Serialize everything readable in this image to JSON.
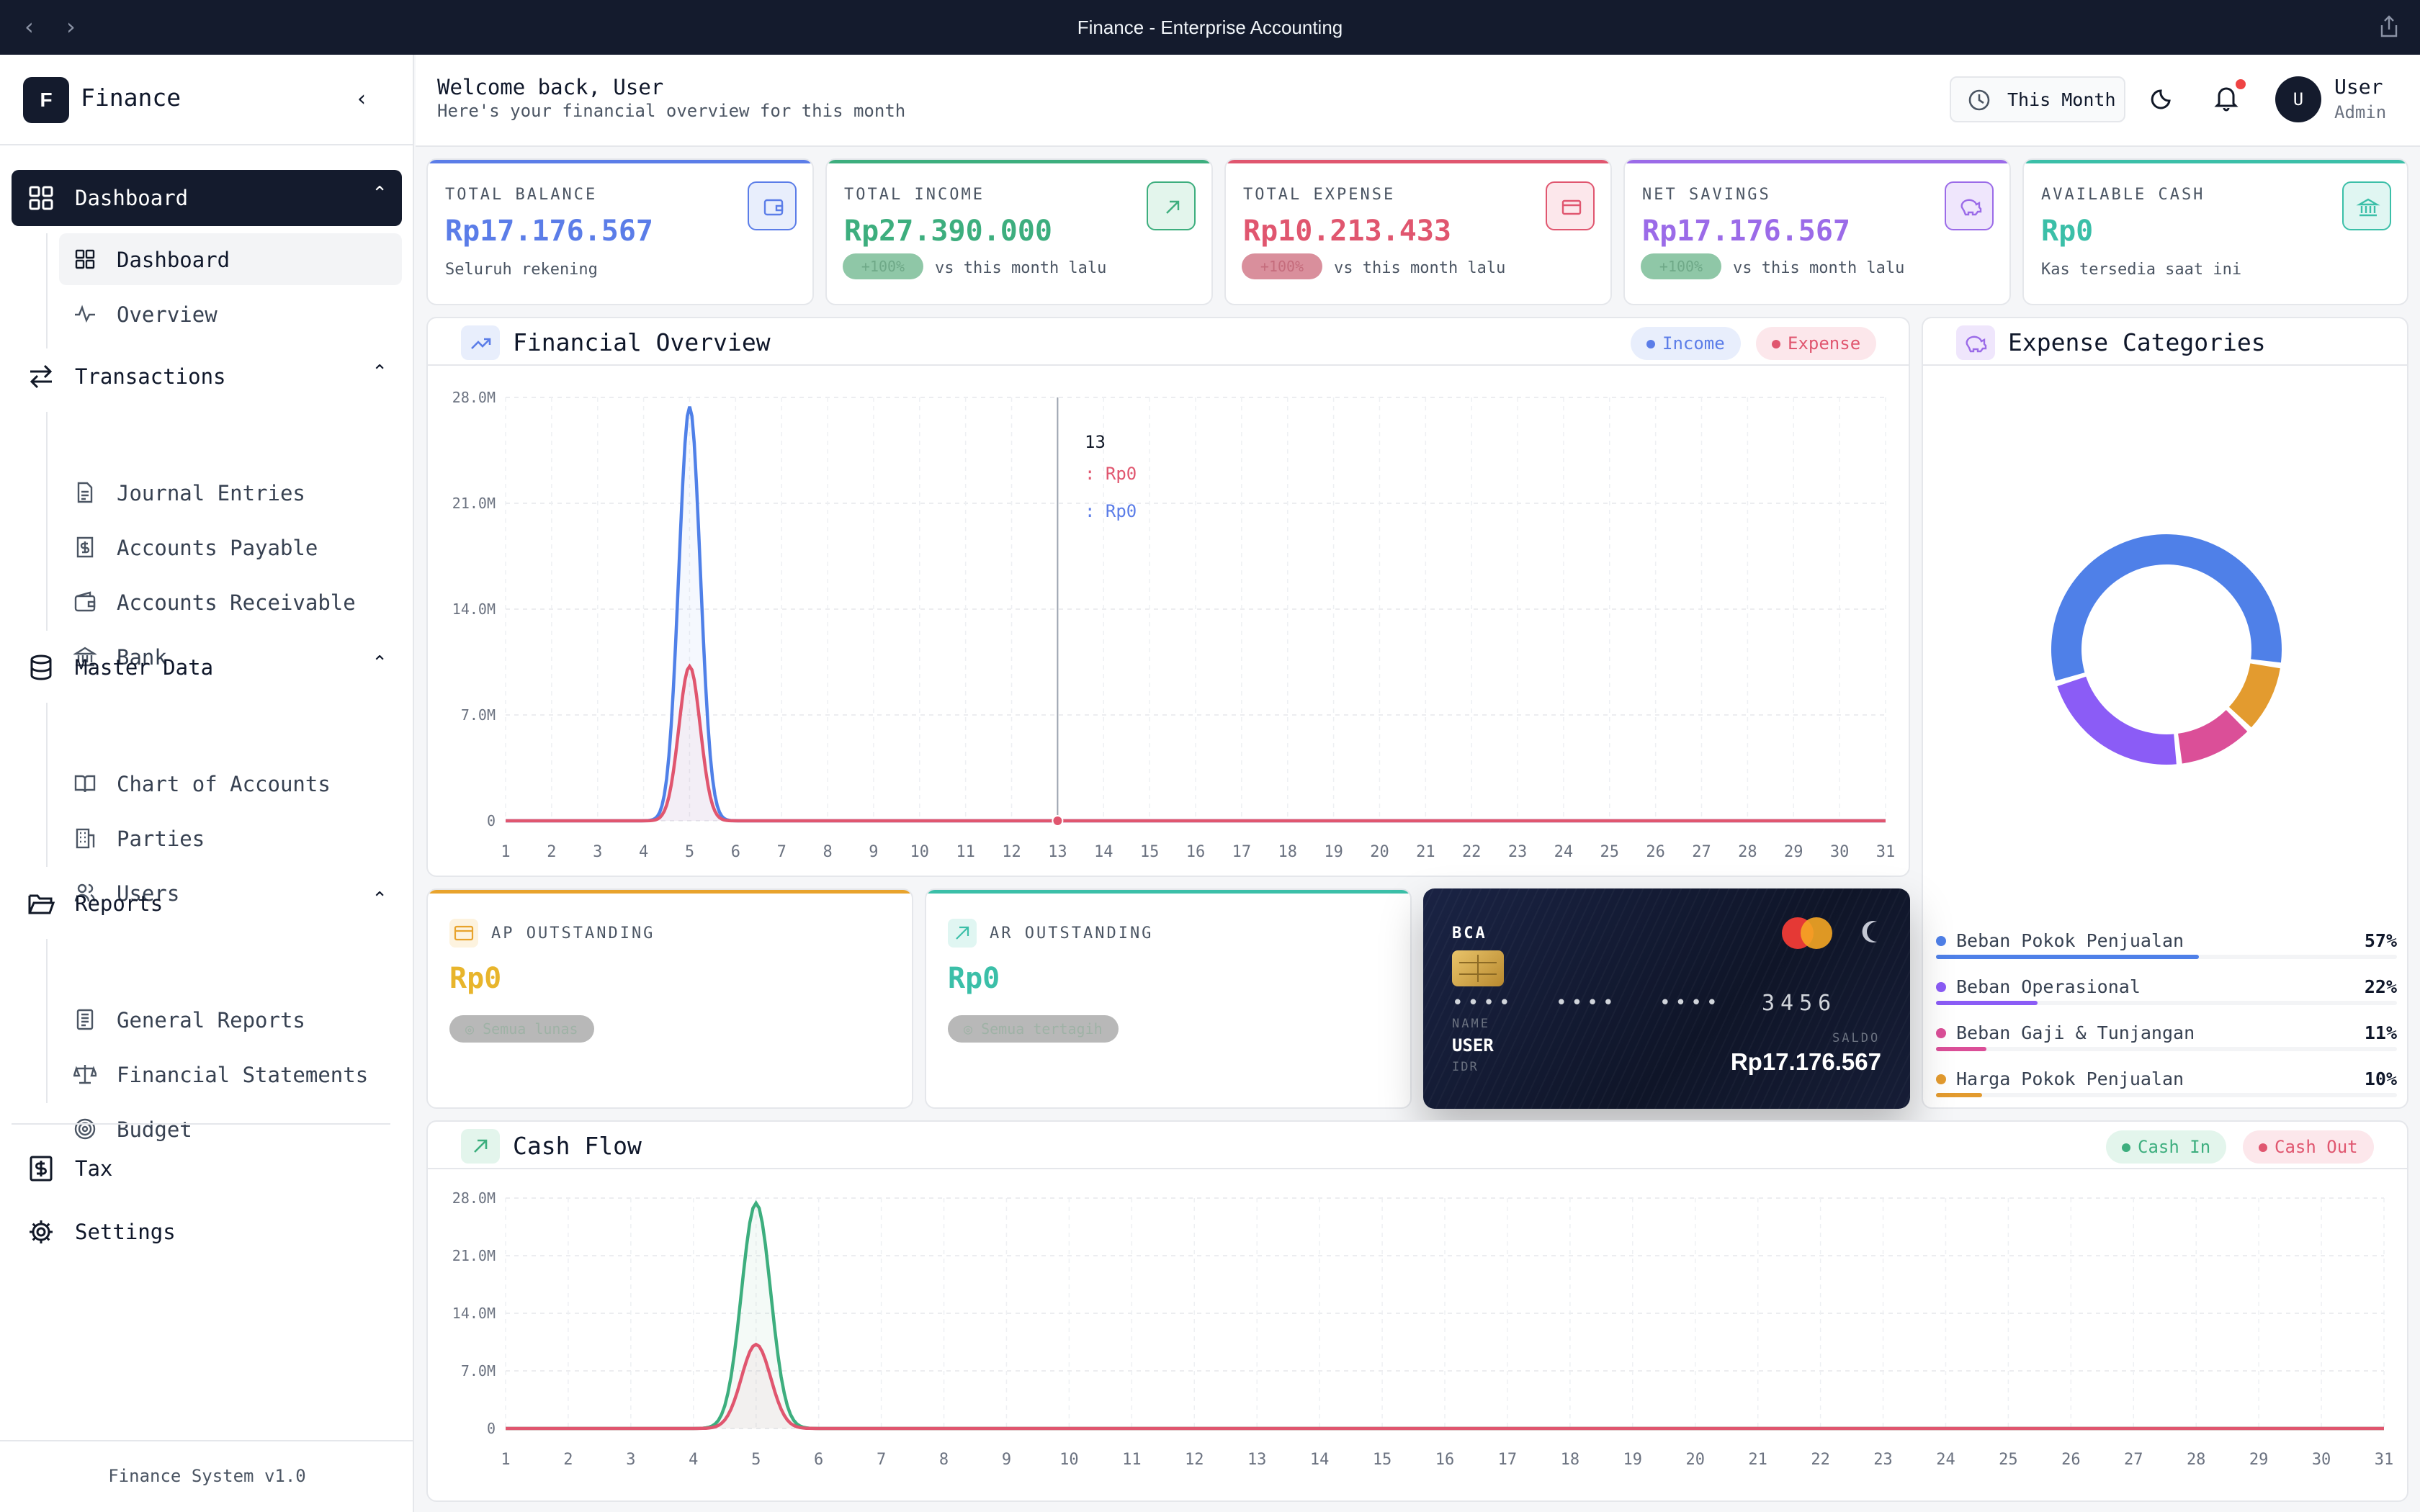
{
  "window": {
    "title": "Finance - Enterprise Accounting"
  },
  "brand": {
    "logo_letter": "F",
    "name": "Finance"
  },
  "sidebar": {
    "groups": [
      {
        "label": "Dashboard",
        "items": [
          "Dashboard",
          "Overview"
        ]
      },
      {
        "label": "Transactions",
        "items": [
          "Journal Entries",
          "Accounts Payable",
          "Accounts Receivable",
          "Bank"
        ]
      },
      {
        "label": "Master Data",
        "items": [
          "Chart of Accounts",
          "Parties",
          "Users"
        ]
      },
      {
        "label": "Reports",
        "items": [
          "General Reports",
          "Financial Statements",
          "Budget"
        ]
      }
    ],
    "tax": "Tax",
    "settings": "Settings",
    "footer": "Finance System v1.0"
  },
  "header": {
    "welcome": "Welcome back, User",
    "subtitle": "Here's your financial overview for this month",
    "period": "This Month",
    "user_initial": "U",
    "user_name": "User",
    "user_role": "Admin"
  },
  "stats": [
    {
      "label": "TOTAL BALANCE",
      "value": "Rp17.176.567",
      "note": "Seluruh rekening",
      "color": "#5b7de8"
    },
    {
      "label": "TOTAL INCOME",
      "value": "Rp27.390.000",
      "badge": "+100%",
      "note": "vs this month lalu",
      "color": "#3dae7e"
    },
    {
      "label": "TOTAL EXPENSE",
      "value": "Rp10.213.433",
      "badge": "+100%",
      "note": "vs this month lalu",
      "color": "#e0566f"
    },
    {
      "label": "NET SAVINGS",
      "value": "Rp17.176.567",
      "badge": "+100%",
      "note": "vs this month lalu",
      "color": "#9b6be8"
    },
    {
      "label": "AVAILABLE CASH",
      "value": "Rp0",
      "note": "Kas tersedia saat ini",
      "color": "#3bbfa8"
    }
  ],
  "overview": {
    "title": "Financial Overview",
    "legend": [
      "Income",
      "Expense"
    ],
    "tooltip": {
      "day": "13",
      "expense": ": Rp0",
      "income": ": Rp0"
    }
  },
  "categories": {
    "title": "Expense Categories",
    "items": [
      {
        "name": "Beban Pokok Penjualan",
        "pct": "57%",
        "value": 57,
        "color": "#4f80e8"
      },
      {
        "name": "Beban Operasional",
        "pct": "22%",
        "value": 22,
        "color": "#8b5cf6"
      },
      {
        "name": "Beban Gaji & Tunjangan",
        "pct": "11%",
        "value": 11,
        "color": "#db4f98"
      },
      {
        "name": "Harga Pokok Penjualan",
        "pct": "10%",
        "value": 10,
        "color": "#e39b2f"
      }
    ]
  },
  "ap": {
    "label": "AP OUTSTANDING",
    "value": "Rp0",
    "badge": "Semua lunas"
  },
  "ar": {
    "label": "AR OUTSTANDING",
    "value": "Rp0",
    "badge": "Semua tertagih"
  },
  "bank_card": {
    "bank": "BCA",
    "masked": [
      "••••",
      "••••",
      "••••",
      "3456"
    ],
    "name_label": "NAME",
    "name": "USER",
    "currency": "IDR",
    "saldo_label": "SALDO",
    "balance": "Rp17.176.567"
  },
  "cashflow": {
    "title": "Cash Flow",
    "legend": [
      "Cash In",
      "Cash Out"
    ]
  },
  "chart_data": [
    {
      "type": "area",
      "title": "Financial Overview",
      "x": [
        1,
        2,
        3,
        4,
        5,
        6,
        7,
        8,
        9,
        10,
        11,
        12,
        13,
        14,
        15,
        16,
        17,
        18,
        19,
        20,
        21,
        22,
        23,
        24,
        25,
        26,
        27,
        28,
        29,
        30,
        31
      ],
      "y_ticks": [
        "0",
        "7.0M",
        "14.0M",
        "21.0M",
        "28.0M"
      ],
      "ylim": [
        0,
        28000000
      ],
      "series": [
        {
          "name": "Income",
          "color": "#4f80e8",
          "values": [
            0,
            0,
            0,
            0,
            27390000,
            0,
            0,
            0,
            0,
            0,
            0,
            0,
            0,
            0,
            0,
            0,
            0,
            0,
            0,
            0,
            0,
            0,
            0,
            0,
            0,
            0,
            0,
            0,
            0,
            0,
            0
          ]
        },
        {
          "name": "Expense",
          "color": "#e0566f",
          "values": [
            0,
            0,
            0,
            0,
            10213433,
            0,
            0,
            0,
            0,
            0,
            0,
            0,
            0,
            0,
            0,
            0,
            0,
            0,
            0,
            0,
            0,
            0,
            0,
            0,
            0,
            0,
            0,
            0,
            0,
            0,
            0
          ]
        }
      ],
      "highlight_x": 13,
      "grid": true
    },
    {
      "type": "pie",
      "title": "Expense Categories",
      "categories": [
        "Beban Pokok Penjualan",
        "Beban Operasional",
        "Beban Gaji & Tunjangan",
        "Harga Pokok Penjualan"
      ],
      "values": [
        57,
        22,
        11,
        10
      ],
      "colors": [
        "#4f80e8",
        "#8b5cf6",
        "#db4f98",
        "#e39b2f"
      ]
    },
    {
      "type": "area",
      "title": "Cash Flow",
      "x": [
        1,
        2,
        3,
        4,
        5,
        6,
        7,
        8,
        9,
        10,
        11,
        12,
        13,
        14,
        15,
        16,
        17,
        18,
        19,
        20,
        21,
        22,
        23,
        24,
        25,
        26,
        27,
        28,
        29,
        30,
        31
      ],
      "y_ticks": [
        "0",
        "7.0M",
        "14.0M",
        "21.0M",
        "28.0M"
      ],
      "ylim": [
        0,
        28000000
      ],
      "series": [
        {
          "name": "Cash In",
          "color": "#3dae7e",
          "values": [
            0,
            0,
            0,
            0,
            27390000,
            0,
            0,
            0,
            0,
            0,
            0,
            0,
            0,
            0,
            0,
            0,
            0,
            0,
            0,
            0,
            0,
            0,
            0,
            0,
            0,
            0,
            0,
            0,
            0,
            0,
            0
          ]
        },
        {
          "name": "Cash Out",
          "color": "#e0566f",
          "values": [
            0,
            0,
            0,
            0,
            10213433,
            0,
            0,
            0,
            0,
            0,
            0,
            0,
            0,
            0,
            0,
            0,
            0,
            0,
            0,
            0,
            0,
            0,
            0,
            0,
            0,
            0,
            0,
            0,
            0,
            0,
            0
          ]
        }
      ],
      "grid": true
    }
  ]
}
